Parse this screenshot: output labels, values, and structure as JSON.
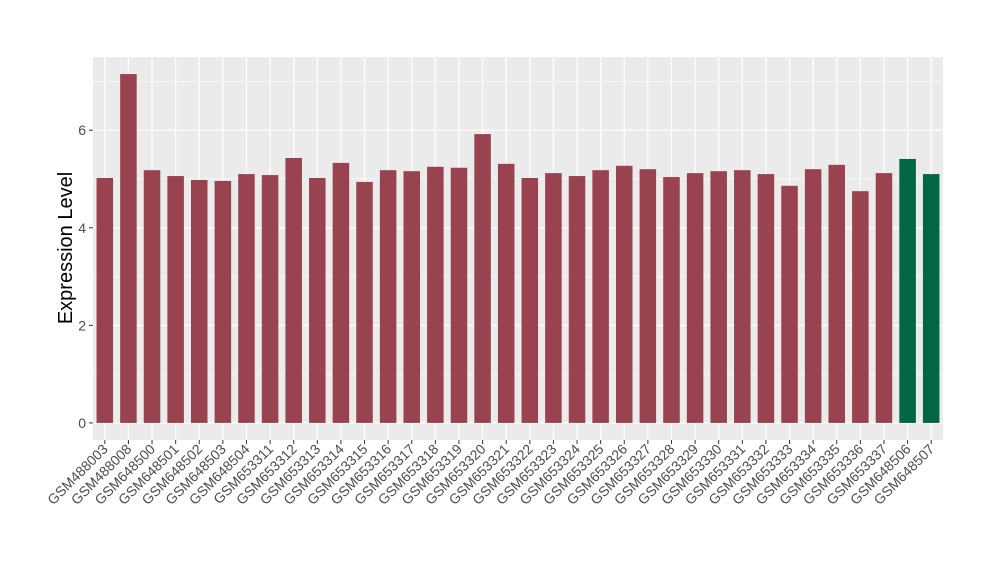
{
  "chart_data": {
    "type": "bar",
    "title": "",
    "xlabel": "",
    "ylabel": "Expression Level",
    "ylim": [
      -0.35,
      7.5
    ],
    "yticks": [
      0,
      2,
      4,
      6
    ],
    "grid": true,
    "legend": "none",
    "colors": {
      "default": "#9a4350",
      "highlight": "#006644",
      "panel": "#ebebeb",
      "grid": "#ffffff"
    },
    "categories": [
      "GSM488003",
      "GSM488008",
      "GSM648500",
      "GSM648501",
      "GSM648502",
      "GSM648503",
      "GSM648504",
      "GSM653311",
      "GSM653312",
      "GSM653313",
      "GSM653314",
      "GSM653315",
      "GSM653316",
      "GSM653317",
      "GSM653318",
      "GSM653319",
      "GSM653320",
      "GSM653321",
      "GSM653322",
      "GSM653323",
      "GSM653324",
      "GSM653325",
      "GSM653326",
      "GSM653327",
      "GSM653328",
      "GSM653329",
      "GSM653330",
      "GSM653331",
      "GSM653332",
      "GSM653333",
      "GSM653334",
      "GSM653335",
      "GSM653336",
      "GSM653337",
      "GSM648506",
      "GSM648507"
    ],
    "values": [
      5.02,
      7.15,
      5.18,
      5.06,
      4.98,
      4.96,
      5.1,
      5.08,
      5.43,
      5.02,
      5.33,
      4.94,
      5.18,
      5.16,
      5.25,
      5.23,
      5.92,
      5.31,
      5.02,
      5.12,
      5.06,
      5.18,
      5.27,
      5.2,
      5.04,
      5.12,
      5.16,
      5.18,
      5.1,
      4.86,
      5.2,
      5.29,
      4.75,
      5.12,
      5.41,
      5.1
    ],
    "highlighted": [
      "GSM648506",
      "GSM648507"
    ]
  }
}
